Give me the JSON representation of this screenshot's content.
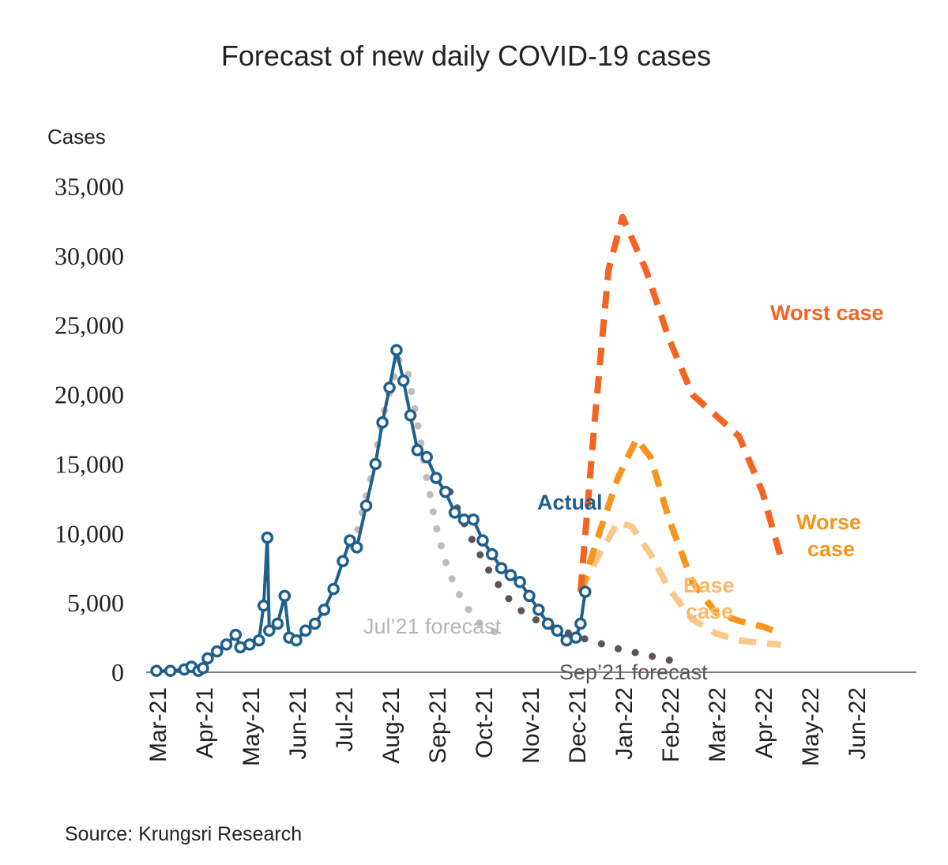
{
  "chart_data": {
    "type": "line",
    "title": "Forecast of new daily COVID-19 cases",
    "ylabel": "Cases",
    "xlabel": "",
    "ylim": [
      0,
      35000
    ],
    "yticks": [
      "0",
      "5,000",
      "10,000",
      "15,000",
      "20,000",
      "25,000",
      "30,000",
      "35,000"
    ],
    "yticks_values": [
      0,
      5000,
      10000,
      15000,
      20000,
      25000,
      30000,
      35000
    ],
    "xticks": [
      "Mar-21",
      "Apr-21",
      "May-21",
      "Jun-21",
      "Jul-21",
      "Aug-21",
      "Sep-21",
      "Oct-21",
      "Nov-21",
      "Dec-21",
      "Jan-22",
      "Feb-22",
      "Mar-22",
      "Apr-22",
      "May-22",
      "Jun-22"
    ],
    "x_unit": "months since Mar-21",
    "series": [
      {
        "name": "Actual",
        "color": "#1f5f8b",
        "style": "solid-markers",
        "points": [
          [
            0,
            100
          ],
          [
            0.3,
            100
          ],
          [
            0.6,
            200
          ],
          [
            0.75,
            400
          ],
          [
            0.9,
            100
          ],
          [
            1.0,
            300
          ],
          [
            1.1,
            1000
          ],
          [
            1.3,
            1500
          ],
          [
            1.5,
            2000
          ],
          [
            1.7,
            2700
          ],
          [
            1.8,
            1800
          ],
          [
            2.0,
            2000
          ],
          [
            2.2,
            2300
          ],
          [
            2.3,
            4800
          ],
          [
            2.38,
            9700
          ],
          [
            2.42,
            3000
          ],
          [
            2.6,
            3500
          ],
          [
            2.75,
            5500
          ],
          [
            2.85,
            2500
          ],
          [
            3.0,
            2300
          ],
          [
            3.2,
            3000
          ],
          [
            3.4,
            3500
          ],
          [
            3.6,
            4500
          ],
          [
            3.8,
            6000
          ],
          [
            4.0,
            8000
          ],
          [
            4.15,
            9500
          ],
          [
            4.3,
            9000
          ],
          [
            4.5,
            12000
          ],
          [
            4.7,
            15000
          ],
          [
            4.85,
            18000
          ],
          [
            5.0,
            20500
          ],
          [
            5.15,
            23200
          ],
          [
            5.3,
            21000
          ],
          [
            5.45,
            18500
          ],
          [
            5.6,
            16000
          ],
          [
            5.8,
            15500
          ],
          [
            6.0,
            14000
          ],
          [
            6.2,
            13000
          ],
          [
            6.4,
            11500
          ],
          [
            6.6,
            11000
          ],
          [
            6.8,
            11000
          ],
          [
            7.0,
            9500
          ],
          [
            7.2,
            8500
          ],
          [
            7.4,
            7500
          ],
          [
            7.6,
            7000
          ],
          [
            7.8,
            6500
          ],
          [
            8.0,
            5500
          ],
          [
            8.2,
            4500
          ],
          [
            8.4,
            3500
          ],
          [
            8.6,
            3000
          ],
          [
            8.8,
            2300
          ],
          [
            9.0,
            2500
          ],
          [
            9.1,
            3500
          ],
          [
            9.2,
            5800
          ]
        ]
      },
      {
        "name": "Jul'21 forecast",
        "color": "#bdbdbd",
        "style": "dotted",
        "points": [
          [
            4.0,
            8000
          ],
          [
            4.3,
            10000
          ],
          [
            4.6,
            14000
          ],
          [
            4.9,
            19000
          ],
          [
            5.2,
            22500
          ],
          [
            5.4,
            21500
          ],
          [
            5.6,
            18000
          ],
          [
            5.8,
            14000
          ],
          [
            6.0,
            10500
          ],
          [
            6.2,
            8000
          ],
          [
            6.4,
            6200
          ],
          [
            6.6,
            5000
          ],
          [
            6.8,
            4000
          ],
          [
            7.0,
            3300
          ],
          [
            7.2,
            3000
          ],
          [
            7.4,
            2700
          ]
        ]
      },
      {
        "name": "Sep'21 forecast",
        "color": "#5f5358",
        "style": "dotted",
        "points": [
          [
            6.3,
            13000
          ],
          [
            6.7,
            10000
          ],
          [
            7.1,
            7500
          ],
          [
            7.5,
            5500
          ],
          [
            7.9,
            4200
          ],
          [
            8.3,
            3500
          ],
          [
            8.7,
            3000
          ],
          [
            9.1,
            2500
          ],
          [
            9.5,
            2100
          ],
          [
            9.9,
            1700
          ],
          [
            10.3,
            1400
          ],
          [
            10.7,
            1100
          ],
          [
            11.1,
            800
          ]
        ]
      },
      {
        "name": "Worst case",
        "color": "#f26522",
        "style": "dashed",
        "points": [
          [
            9.1,
            5800
          ],
          [
            9.4,
            18000
          ],
          [
            9.7,
            29000
          ],
          [
            10.0,
            32800
          ],
          [
            10.5,
            29000
          ],
          [
            11.0,
            24000
          ],
          [
            11.5,
            20000
          ],
          [
            12.0,
            18500
          ],
          [
            12.5,
            17000
          ],
          [
            13.0,
            13000
          ],
          [
            13.4,
            8200
          ]
        ]
      },
      {
        "name": "Worse case",
        "color": "#f7941d",
        "style": "dashed",
        "points": [
          [
            9.1,
            5800
          ],
          [
            9.5,
            10000
          ],
          [
            9.9,
            14000
          ],
          [
            10.3,
            16800
          ],
          [
            10.6,
            15500
          ],
          [
            11.0,
            11000
          ],
          [
            11.5,
            6500
          ],
          [
            12.0,
            4300
          ],
          [
            12.5,
            3700
          ],
          [
            13.0,
            3300
          ],
          [
            13.4,
            2800
          ]
        ]
      },
      {
        "name": "Base case",
        "color": "#fbc888",
        "style": "dashed",
        "points": [
          [
            9.1,
            5800
          ],
          [
            9.5,
            8500
          ],
          [
            9.9,
            10800
          ],
          [
            10.2,
            10500
          ],
          [
            10.6,
            8500
          ],
          [
            11.0,
            6000
          ],
          [
            11.5,
            3800
          ],
          [
            12.0,
            2800
          ],
          [
            12.5,
            2300
          ],
          [
            13.0,
            2100
          ],
          [
            13.4,
            2000
          ]
        ]
      }
    ],
    "annotations": {
      "actual": "Actual",
      "worst": "Worst case",
      "worse_1": "Worse",
      "worse_2": "case",
      "base_1": "Base",
      "base_2": "case",
      "jul": "Jul’21 forecast",
      "sep": "Sep’21 forecast"
    }
  },
  "source": "Source: Krungsri Research"
}
